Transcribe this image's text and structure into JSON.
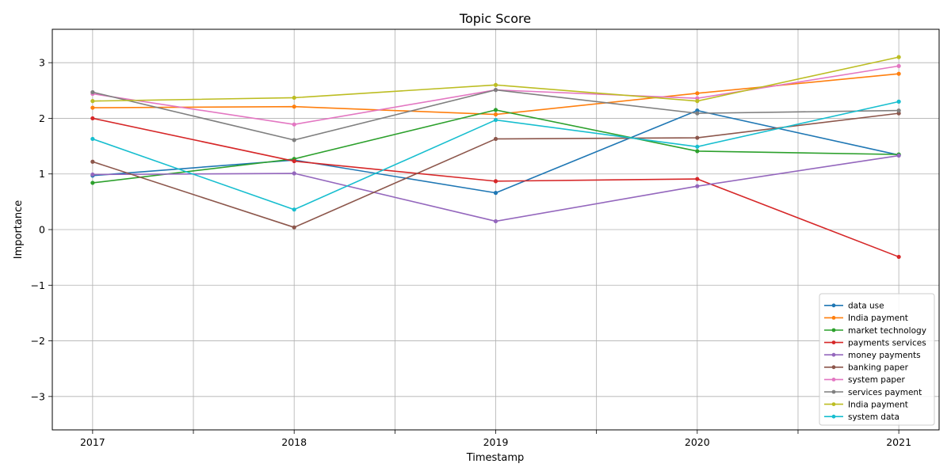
{
  "chart_data": {
    "type": "line",
    "title": "Topic Score",
    "xlabel": "Timestamp",
    "ylabel": "Importance",
    "x": [
      2017,
      2018,
      2019,
      2020,
      2021
    ],
    "x_tick_labels": [
      "2017",
      "2018",
      "2019",
      "2020",
      "2021"
    ],
    "x_minor_ticks": [
      2017.5,
      2018.5,
      2019.5,
      2020.5
    ],
    "xlim": [
      2016.8,
      2021.2
    ],
    "ylim": [
      -3.6,
      3.6
    ],
    "y_ticks": [
      -3,
      -2,
      -1,
      0,
      1,
      2,
      3
    ],
    "y_tick_labels": [
      "−3",
      "−2",
      "−1",
      "0",
      "1",
      "2",
      "3"
    ],
    "grid": true,
    "legend_position": "lower-right",
    "series": [
      {
        "name": "data use",
        "color": "#1f77b4",
        "values": [
          0.97,
          1.25,
          0.66,
          2.14,
          1.34
        ]
      },
      {
        "name": "India payment",
        "color": "#ff7f0e",
        "values": [
          2.19,
          2.21,
          2.07,
          2.45,
          2.8
        ]
      },
      {
        "name": "market technology",
        "color": "#2ca02c",
        "values": [
          0.84,
          1.27,
          2.15,
          1.41,
          1.35
        ]
      },
      {
        "name": "payments services",
        "color": "#d62728",
        "values": [
          2.0,
          1.23,
          0.87,
          0.91,
          -0.49
        ]
      },
      {
        "name": "money payments",
        "color": "#9467bd",
        "values": [
          0.99,
          1.01,
          0.15,
          0.78,
          1.33
        ]
      },
      {
        "name": "banking paper",
        "color": "#8c564b",
        "values": [
          1.22,
          0.04,
          1.63,
          1.65,
          2.09
        ]
      },
      {
        "name": "system paper",
        "color": "#e377c2",
        "values": [
          2.44,
          1.89,
          2.51,
          2.36,
          2.94
        ]
      },
      {
        "name": "services payment",
        "color": "#7f7f7f",
        "values": [
          2.47,
          1.61,
          2.51,
          2.09,
          2.14
        ]
      },
      {
        "name": "India payment",
        "color": "#bcbd22",
        "values": [
          2.31,
          2.37,
          2.6,
          2.31,
          3.1
        ]
      },
      {
        "name": "system data",
        "color": "#17becf",
        "values": [
          1.63,
          0.36,
          1.97,
          1.49,
          2.3
        ]
      }
    ]
  }
}
